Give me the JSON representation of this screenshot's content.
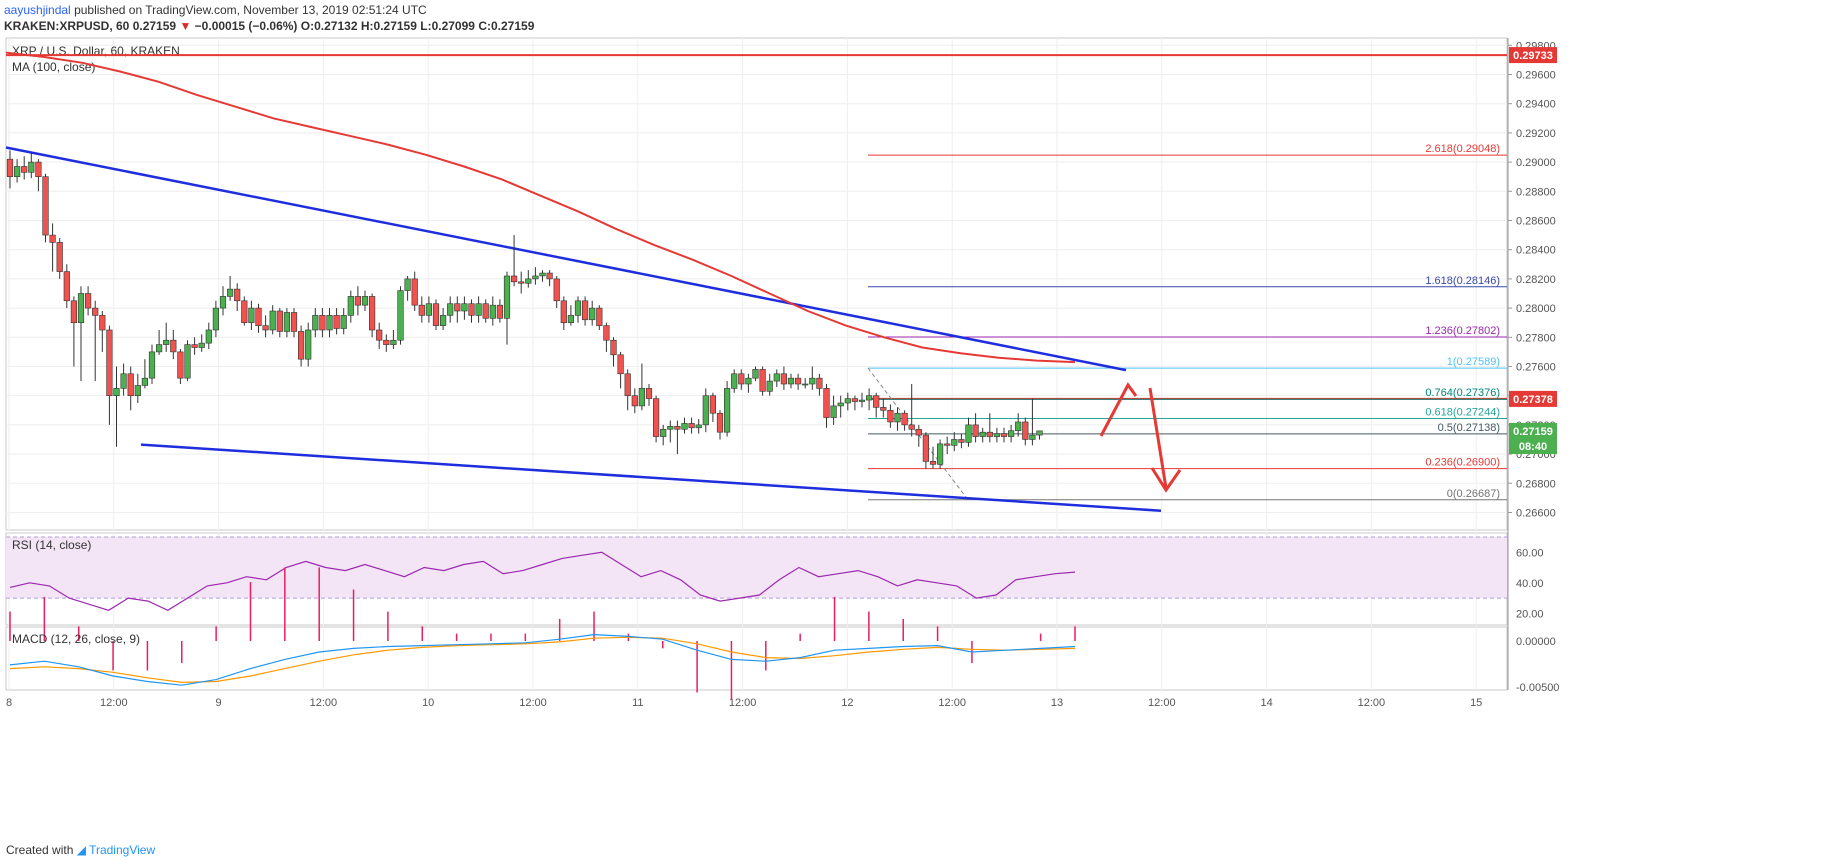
{
  "header": {
    "user": "aayushjindal",
    "published": "published on TradingView.com, November 13, 2019 02:51:24 UTC",
    "symbol": "KRAKEN:XRPUSD, 60",
    "change_arrow": "▼",
    "o_label": "O:",
    "h_label": "H:",
    "l_label": "L:",
    "c_label": "C:",
    "last": "0.27159",
    "change": "−0.00015 (−0.06%)",
    "open": "0.27132",
    "high": "0.27159",
    "low": "0.27099",
    "close": "0.27159"
  },
  "footer": {
    "created_with": "Created with",
    "brand": "TradingView"
  },
  "colors": {
    "up": "#4caf50",
    "down": "#ef5350",
    "ma": "#e53935",
    "trend": "#1e2ede",
    "rsi": "#9c27b0",
    "macd": "#2196f3",
    "signal": "#ff9800",
    "hist": "#e91e63"
  },
  "chart_data": {
    "type": "candlestick",
    "title": "XRP / U.S. Dollar, 60, KRAKEN",
    "indicator_label": "MA (100, close)",
    "y_ticks": [
      "0.29800",
      "0.29600",
      "0.29400",
      "0.29200",
      "0.29000",
      "0.28800",
      "0.28600",
      "0.28400",
      "0.28200",
      "0.28000",
      "0.27800",
      "0.27600",
      "0.27400",
      "0.27200",
      "0.27000",
      "0.26800",
      "0.26600"
    ],
    "y_range": [
      0.2648,
      0.2985
    ],
    "x_ticks": [
      "8",
      "12:00",
      "9",
      "12:00",
      "10",
      "12:00",
      "11",
      "12:00",
      "12",
      "12:00",
      "13",
      "12:00",
      "14",
      "12:00",
      "15"
    ],
    "price_labels": [
      {
        "text": "0.29733",
        "value": 0.29733,
        "color": "#e53935"
      },
      {
        "text": "0.27378",
        "value": 0.27378,
        "color": "#e53935"
      },
      {
        "text": "0.27159",
        "value": 0.27159,
        "color": "#4caf50"
      },
      {
        "text": "08:40",
        "value": 0.27055,
        "color": "#4caf50"
      }
    ],
    "horizontal_line": 0.29733,
    "resistance_line": 0.27378,
    "fib_levels": [
      {
        "label": "2.618(0.29048)",
        "value": 0.29048,
        "color": "#e53935"
      },
      {
        "label": "1.618(0.28146)",
        "value": 0.28146,
        "color": "#3949ab"
      },
      {
        "label": "1.236(0.27802)",
        "value": 0.27802,
        "color": "#9c27b0"
      },
      {
        "label": "1(0.27589)",
        "value": 0.27589,
        "color": "#4fc3f7"
      },
      {
        "label": "0.764(0.27376)",
        "value": 0.27376,
        "color": "#00897b"
      },
      {
        "label": "0.618(0.27244)",
        "value": 0.27244,
        "color": "#26a69a"
      },
      {
        "label": "0.5(0.27138)",
        "value": 0.27138,
        "color": "#455a64"
      },
      {
        "label": "0.236(0.26900)",
        "value": 0.269,
        "color": "#e53935"
      },
      {
        "label": "0(0.26687)",
        "value": 0.26687,
        "color": "#757575"
      }
    ],
    "candles": [
      [
        0.2902,
        0.289,
        0.2908,
        0.2882
      ],
      [
        0.289,
        0.2897,
        0.2902,
        0.2886
      ],
      [
        0.2897,
        0.2893,
        0.2904,
        0.2888
      ],
      [
        0.2893,
        0.29,
        0.2906,
        0.2889
      ],
      [
        0.29,
        0.289,
        0.2902,
        0.288
      ],
      [
        0.289,
        0.285,
        0.2892,
        0.2845
      ],
      [
        0.285,
        0.2845,
        0.2858,
        0.2825
      ],
      [
        0.2845,
        0.2825,
        0.2848,
        0.282
      ],
      [
        0.2825,
        0.2805,
        0.283,
        0.28
      ],
      [
        0.2805,
        0.279,
        0.2808,
        0.276
      ],
      [
        0.279,
        0.281,
        0.2815,
        0.275
      ],
      [
        0.281,
        0.28,
        0.2815,
        0.2795
      ],
      [
        0.28,
        0.2795,
        0.2805,
        0.275
      ],
      [
        0.2795,
        0.2785,
        0.2798,
        0.277
      ],
      [
        0.2785,
        0.274,
        0.2788,
        0.272
      ],
      [
        0.274,
        0.2745,
        0.276,
        0.2705
      ],
      [
        0.2745,
        0.2755,
        0.2762,
        0.274
      ],
      [
        0.2755,
        0.274,
        0.276,
        0.273
      ],
      [
        0.274,
        0.2747,
        0.2755,
        0.2735
      ],
      [
        0.2747,
        0.2752,
        0.2765,
        0.2745
      ],
      [
        0.2752,
        0.277,
        0.2775,
        0.2748
      ],
      [
        0.277,
        0.2775,
        0.2785,
        0.2768
      ],
      [
        0.2775,
        0.2778,
        0.279,
        0.277
      ],
      [
        0.2778,
        0.277,
        0.2785,
        0.2765
      ],
      [
        0.277,
        0.2752,
        0.2772,
        0.2748
      ],
      [
        0.2752,
        0.2775,
        0.2778,
        0.275
      ],
      [
        0.2775,
        0.2773,
        0.278,
        0.2768
      ],
      [
        0.2773,
        0.2776,
        0.2782,
        0.277
      ],
      [
        0.2776,
        0.2785,
        0.279,
        0.2772
      ],
      [
        0.2785,
        0.28,
        0.2805,
        0.278
      ],
      [
        0.28,
        0.2808,
        0.2815,
        0.2795
      ],
      [
        0.2808,
        0.2813,
        0.2822,
        0.2805
      ],
      [
        0.2813,
        0.2805,
        0.2817,
        0.2798
      ],
      [
        0.2805,
        0.279,
        0.2808,
        0.2788
      ],
      [
        0.279,
        0.28,
        0.2805,
        0.2785
      ],
      [
        0.28,
        0.2788,
        0.2803,
        0.2783
      ],
      [
        0.2788,
        0.2785,
        0.2795,
        0.278
      ],
      [
        0.2785,
        0.2798,
        0.2802,
        0.2782
      ],
      [
        0.2798,
        0.2784,
        0.28,
        0.278
      ],
      [
        0.2784,
        0.2797,
        0.28,
        0.278
      ],
      [
        0.2797,
        0.2784,
        0.28,
        0.278
      ],
      [
        0.2784,
        0.2765,
        0.2788,
        0.276
      ],
      [
        0.2765,
        0.2785,
        0.279,
        0.276
      ],
      [
        0.2785,
        0.2795,
        0.28,
        0.278
      ],
      [
        0.2795,
        0.2785,
        0.28,
        0.278
      ],
      [
        0.2785,
        0.2795,
        0.28,
        0.278
      ],
      [
        0.2795,
        0.2786,
        0.28,
        0.2782
      ],
      [
        0.2786,
        0.2795,
        0.28,
        0.2782
      ],
      [
        0.2795,
        0.2808,
        0.2812,
        0.279
      ],
      [
        0.2808,
        0.2802,
        0.2815,
        0.2795
      ],
      [
        0.2802,
        0.2808,
        0.2812,
        0.2798
      ],
      [
        0.2808,
        0.2785,
        0.281,
        0.278
      ],
      [
        0.2785,
        0.2778,
        0.279,
        0.2772
      ],
      [
        0.2778,
        0.2775,
        0.2782,
        0.277
      ],
      [
        0.2775,
        0.2778,
        0.2785,
        0.2772
      ],
      [
        0.2778,
        0.2812,
        0.2815,
        0.2775
      ],
      [
        0.2812,
        0.282,
        0.2822,
        0.2805
      ],
      [
        0.282,
        0.2802,
        0.2825,
        0.2798
      ],
      [
        0.2802,
        0.2795,
        0.2808,
        0.279
      ],
      [
        0.2795,
        0.2803,
        0.2808,
        0.279
      ],
      [
        0.2803,
        0.2788,
        0.2806,
        0.2785
      ],
      [
        0.2788,
        0.2795,
        0.28,
        0.2785
      ],
      [
        0.2795,
        0.2803,
        0.2808,
        0.279
      ],
      [
        0.2803,
        0.2798,
        0.2808,
        0.279
      ],
      [
        0.2798,
        0.2803,
        0.2808,
        0.2792
      ],
      [
        0.2803,
        0.2795,
        0.2806,
        0.279
      ],
      [
        0.2795,
        0.2803,
        0.2808,
        0.279
      ],
      [
        0.2803,
        0.2793,
        0.2806,
        0.279
      ],
      [
        0.2793,
        0.2802,
        0.2808,
        0.2788
      ],
      [
        0.2802,
        0.2793,
        0.2806,
        0.279
      ],
      [
        0.2793,
        0.2822,
        0.2825,
        0.2775
      ],
      [
        0.2822,
        0.2818,
        0.285,
        0.2815
      ],
      [
        0.2818,
        0.2817,
        0.2825,
        0.281
      ],
      [
        0.2817,
        0.282,
        0.2826,
        0.2814
      ],
      [
        0.282,
        0.2822,
        0.2828,
        0.2816
      ],
      [
        0.2822,
        0.2824,
        0.2826,
        0.2818
      ],
      [
        0.2824,
        0.282,
        0.2826,
        0.2815
      ],
      [
        0.282,
        0.2805,
        0.2822,
        0.28
      ],
      [
        0.2805,
        0.279,
        0.2808,
        0.2785
      ],
      [
        0.279,
        0.2795,
        0.2802,
        0.2788
      ],
      [
        0.2795,
        0.2805,
        0.2808,
        0.279
      ],
      [
        0.2805,
        0.2792,
        0.2808,
        0.2788
      ],
      [
        0.2792,
        0.28,
        0.2805,
        0.2788
      ],
      [
        0.28,
        0.2788,
        0.2802,
        0.2785
      ],
      [
        0.2788,
        0.2778,
        0.279,
        0.277
      ],
      [
        0.2778,
        0.2768,
        0.278,
        0.276
      ],
      [
        0.2768,
        0.2755,
        0.277,
        0.2745
      ],
      [
        0.2755,
        0.274,
        0.2758,
        0.273
      ],
      [
        0.274,
        0.2733,
        0.2745,
        0.2728
      ],
      [
        0.2733,
        0.2745,
        0.2762,
        0.273
      ],
      [
        0.2745,
        0.2738,
        0.2748,
        0.2733
      ],
      [
        0.2738,
        0.2712,
        0.274,
        0.2708
      ],
      [
        0.2712,
        0.2717,
        0.272,
        0.2706
      ],
      [
        0.2717,
        0.2719,
        0.2723,
        0.2708
      ],
      [
        0.2719,
        0.2717,
        0.2723,
        0.27
      ],
      [
        0.2717,
        0.2721,
        0.2725,
        0.2714
      ],
      [
        0.2721,
        0.2718,
        0.2725,
        0.2714
      ],
      [
        0.2718,
        0.272,
        0.2724,
        0.2714
      ],
      [
        0.272,
        0.274,
        0.2745,
        0.2715
      ],
      [
        0.274,
        0.2728,
        0.2742,
        0.2722
      ],
      [
        0.2728,
        0.2715,
        0.273,
        0.271
      ],
      [
        0.2715,
        0.2745,
        0.275,
        0.2712
      ],
      [
        0.2745,
        0.2755,
        0.2758,
        0.2742
      ],
      [
        0.2755,
        0.2748,
        0.2758,
        0.2744
      ],
      [
        0.2748,
        0.2752,
        0.2755,
        0.2742
      ],
      [
        0.2752,
        0.2758,
        0.276,
        0.275
      ],
      [
        0.2758,
        0.2743,
        0.276,
        0.274
      ],
      [
        0.2743,
        0.275,
        0.2755,
        0.274
      ],
      [
        0.275,
        0.2755,
        0.2758,
        0.2746
      ],
      [
        0.2755,
        0.2748,
        0.276,
        0.2744
      ],
      [
        0.2748,
        0.2752,
        0.2755,
        0.2745
      ],
      [
        0.2752,
        0.2748,
        0.2755,
        0.2744
      ],
      [
        0.2748,
        0.2748,
        0.2752,
        0.2745
      ],
      [
        0.2748,
        0.2752,
        0.276,
        0.2744
      ],
      [
        0.2752,
        0.2745,
        0.2755,
        0.274
      ],
      [
        0.2745,
        0.2725,
        0.2748,
        0.2718
      ],
      [
        0.2725,
        0.2733,
        0.274,
        0.272
      ],
      [
        0.2733,
        0.2735,
        0.274,
        0.2725
      ],
      [
        0.2735,
        0.2738,
        0.2742,
        0.273
      ],
      [
        0.2738,
        0.2736,
        0.274,
        0.273
      ],
      [
        0.2736,
        0.2737,
        0.2742,
        0.2732
      ],
      [
        0.2737,
        0.274,
        0.2745,
        0.273
      ],
      [
        0.274,
        0.2732,
        0.2742,
        0.2725
      ],
      [
        0.2732,
        0.273,
        0.2738,
        0.2725
      ],
      [
        0.273,
        0.2722,
        0.2734,
        0.2718
      ],
      [
        0.2722,
        0.2728,
        0.2732,
        0.2716
      ],
      [
        0.2728,
        0.272,
        0.273,
        0.2716
      ],
      [
        0.272,
        0.2717,
        0.2748,
        0.2712
      ],
      [
        0.2717,
        0.2713,
        0.272,
        0.2705
      ],
      [
        0.2713,
        0.2695,
        0.2715,
        0.269
      ],
      [
        0.2695,
        0.2693,
        0.2705,
        0.269
      ],
      [
        0.2693,
        0.2707,
        0.271,
        0.269
      ],
      [
        0.2707,
        0.2706,
        0.2712,
        0.27
      ],
      [
        0.2706,
        0.271,
        0.2715,
        0.2702
      ],
      [
        0.271,
        0.2708,
        0.2714,
        0.2704
      ],
      [
        0.2708,
        0.272,
        0.2725,
        0.2705
      ],
      [
        0.272,
        0.2712,
        0.2728,
        0.2708
      ],
      [
        0.2712,
        0.2715,
        0.2718,
        0.2708
      ],
      [
        0.2715,
        0.2712,
        0.2728,
        0.2708
      ],
      [
        0.2712,
        0.2714,
        0.2718,
        0.2708
      ],
      [
        0.2714,
        0.2712,
        0.2718,
        0.2708
      ],
      [
        0.2712,
        0.2716,
        0.272,
        0.2708
      ],
      [
        0.2716,
        0.2722,
        0.2728,
        0.2712
      ],
      [
        0.2722,
        0.271,
        0.2725,
        0.2706
      ],
      [
        0.271,
        0.2713,
        0.2738,
        0.2706
      ],
      [
        0.2713,
        0.27159,
        0.27159,
        0.27099
      ]
    ],
    "ma100": [
      0.2975,
      0.2972,
      0.2968,
      0.2962,
      0.2955,
      0.2946,
      0.2938,
      0.293,
      0.2924,
      0.2918,
      0.2912,
      0.2905,
      0.2897,
      0.2888,
      0.2877,
      0.2866,
      0.2854,
      0.2843,
      0.2833,
      0.2822,
      0.281,
      0.2798,
      0.2788,
      0.278,
      0.2773,
      0.2769,
      0.2766,
      0.2764,
      0.2763
    ],
    "rsi": {
      "label": "RSI (14, close)",
      "ticks": [
        "60.00",
        "40.00",
        "20.00"
      ],
      "upper": 70,
      "lower": 30,
      "values": [
        37,
        40,
        38,
        30,
        26,
        22,
        30,
        28,
        22,
        30,
        38,
        40,
        44,
        42,
        50,
        54,
        50,
        48,
        52,
        48,
        44,
        50,
        48,
        52,
        54,
        46,
        48,
        52,
        56,
        58,
        60,
        52,
        44,
        48,
        42,
        32,
        28,
        30,
        32,
        42,
        50,
        44,
        46,
        48,
        44,
        38,
        42,
        40,
        38,
        30,
        32,
        42,
        44,
        46,
        47
      ]
    },
    "macd": {
      "label": "MACD (12, 26, close, 9)",
      "ticks": [
        "0.00000",
        "-0.00500"
      ],
      "macd": [
        -0.0026,
        -0.0022,
        -0.0028,
        -0.0038,
        -0.0044,
        -0.0048,
        -0.0042,
        -0.003,
        -0.002,
        -0.0012,
        -0.0008,
        -0.0006,
        -0.0005,
        -0.0004,
        -0.0003,
        -0.0002,
        0.0002,
        0.0007,
        0.0005,
        0.0002,
        -0.001,
        -0.002,
        -0.0022,
        -0.0018,
        -0.001,
        -0.0008,
        -0.0006,
        -0.0005,
        -0.0012,
        -0.001,
        -0.0008,
        -0.0006
      ],
      "signal": [
        -0.003,
        -0.0028,
        -0.003,
        -0.0034,
        -0.004,
        -0.0045,
        -0.0044,
        -0.0038,
        -0.003,
        -0.0022,
        -0.0015,
        -0.001,
        -0.0007,
        -0.0005,
        -0.0004,
        -0.0003,
        -0.0001,
        0.0003,
        0.0004,
        0.0003,
        -0.0003,
        -0.0012,
        -0.0018,
        -0.0019,
        -0.0016,
        -0.0012,
        -0.0009,
        -0.0007,
        -0.0009,
        -0.001,
        -0.0009,
        -0.0008
      ]
    }
  }
}
